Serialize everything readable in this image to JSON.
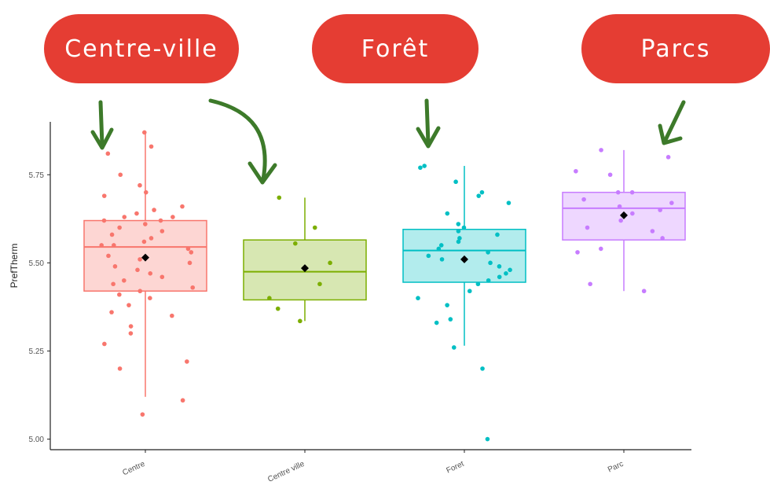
{
  "annotations": [
    {
      "label": "Centre-ville"
    },
    {
      "label": "Forêt"
    },
    {
      "label": "Parcs"
    }
  ],
  "colors": {
    "annotation": "#e53d33",
    "arrow": "#3d7a2a",
    "mean_marker": "#000000"
  },
  "chart_data": {
    "type": "box",
    "ylabel": "PrefTherm",
    "xlabel": "",
    "ylim": [
      4.97,
      5.9
    ],
    "yticks": [
      5.0,
      5.25,
      5.5,
      5.75
    ],
    "grid": false,
    "legend": "none",
    "categories": [
      "Centre",
      "Centre ville",
      "Foret",
      "Parc"
    ],
    "series": [
      {
        "category": "Centre",
        "color": "#f8766d",
        "whisker_low": 5.12,
        "q1": 5.42,
        "median": 5.545,
        "q3": 5.62,
        "whisker_high": 5.87,
        "mean": 5.515,
        "points": [
          5.87,
          5.83,
          5.81,
          5.75,
          5.72,
          5.7,
          5.69,
          5.66,
          5.65,
          5.64,
          5.63,
          5.63,
          5.62,
          5.62,
          5.61,
          5.6,
          5.59,
          5.58,
          5.57,
          5.56,
          5.55,
          5.55,
          5.54,
          5.53,
          5.52,
          5.51,
          5.5,
          5.49,
          5.48,
          5.47,
          5.46,
          5.45,
          5.44,
          5.43,
          5.42,
          5.41,
          5.4,
          5.38,
          5.36,
          5.35,
          5.32,
          5.3,
          5.27,
          5.22,
          5.2,
          5.11,
          5.07
        ]
      },
      {
        "category": "Centre ville",
        "color": "#7cae00",
        "whisker_low": 5.335,
        "q1": 5.395,
        "median": 5.475,
        "q3": 5.565,
        "whisker_high": 5.685,
        "mean": 5.485,
        "points": [
          5.685,
          5.6,
          5.555,
          5.5,
          5.44,
          5.4,
          5.37,
          5.335
        ]
      },
      {
        "category": "Foret",
        "color": "#00bfc4",
        "whisker_low": 5.265,
        "q1": 5.445,
        "median": 5.535,
        "q3": 5.595,
        "whisker_high": 5.775,
        "mean": 5.51,
        "points": [
          5.775,
          5.77,
          5.73,
          5.7,
          5.69,
          5.67,
          5.64,
          5.61,
          5.6,
          5.59,
          5.58,
          5.57,
          5.56,
          5.55,
          5.54,
          5.53,
          5.52,
          5.51,
          5.5,
          5.49,
          5.48,
          5.47,
          5.46,
          5.45,
          5.44,
          5.42,
          5.4,
          5.38,
          5.34,
          5.33,
          5.26,
          5.2,
          5.0
        ]
      },
      {
        "category": "Parc",
        "color": "#c77cff",
        "whisker_low": 5.42,
        "q1": 5.565,
        "median": 5.655,
        "q3": 5.7,
        "whisker_high": 5.82,
        "mean": 5.635,
        "points": [
          5.82,
          5.8,
          5.76,
          5.75,
          5.7,
          5.7,
          5.68,
          5.67,
          5.66,
          5.65,
          5.64,
          5.62,
          5.6,
          5.59,
          5.57,
          5.54,
          5.53,
          5.44,
          5.42
        ]
      }
    ]
  }
}
